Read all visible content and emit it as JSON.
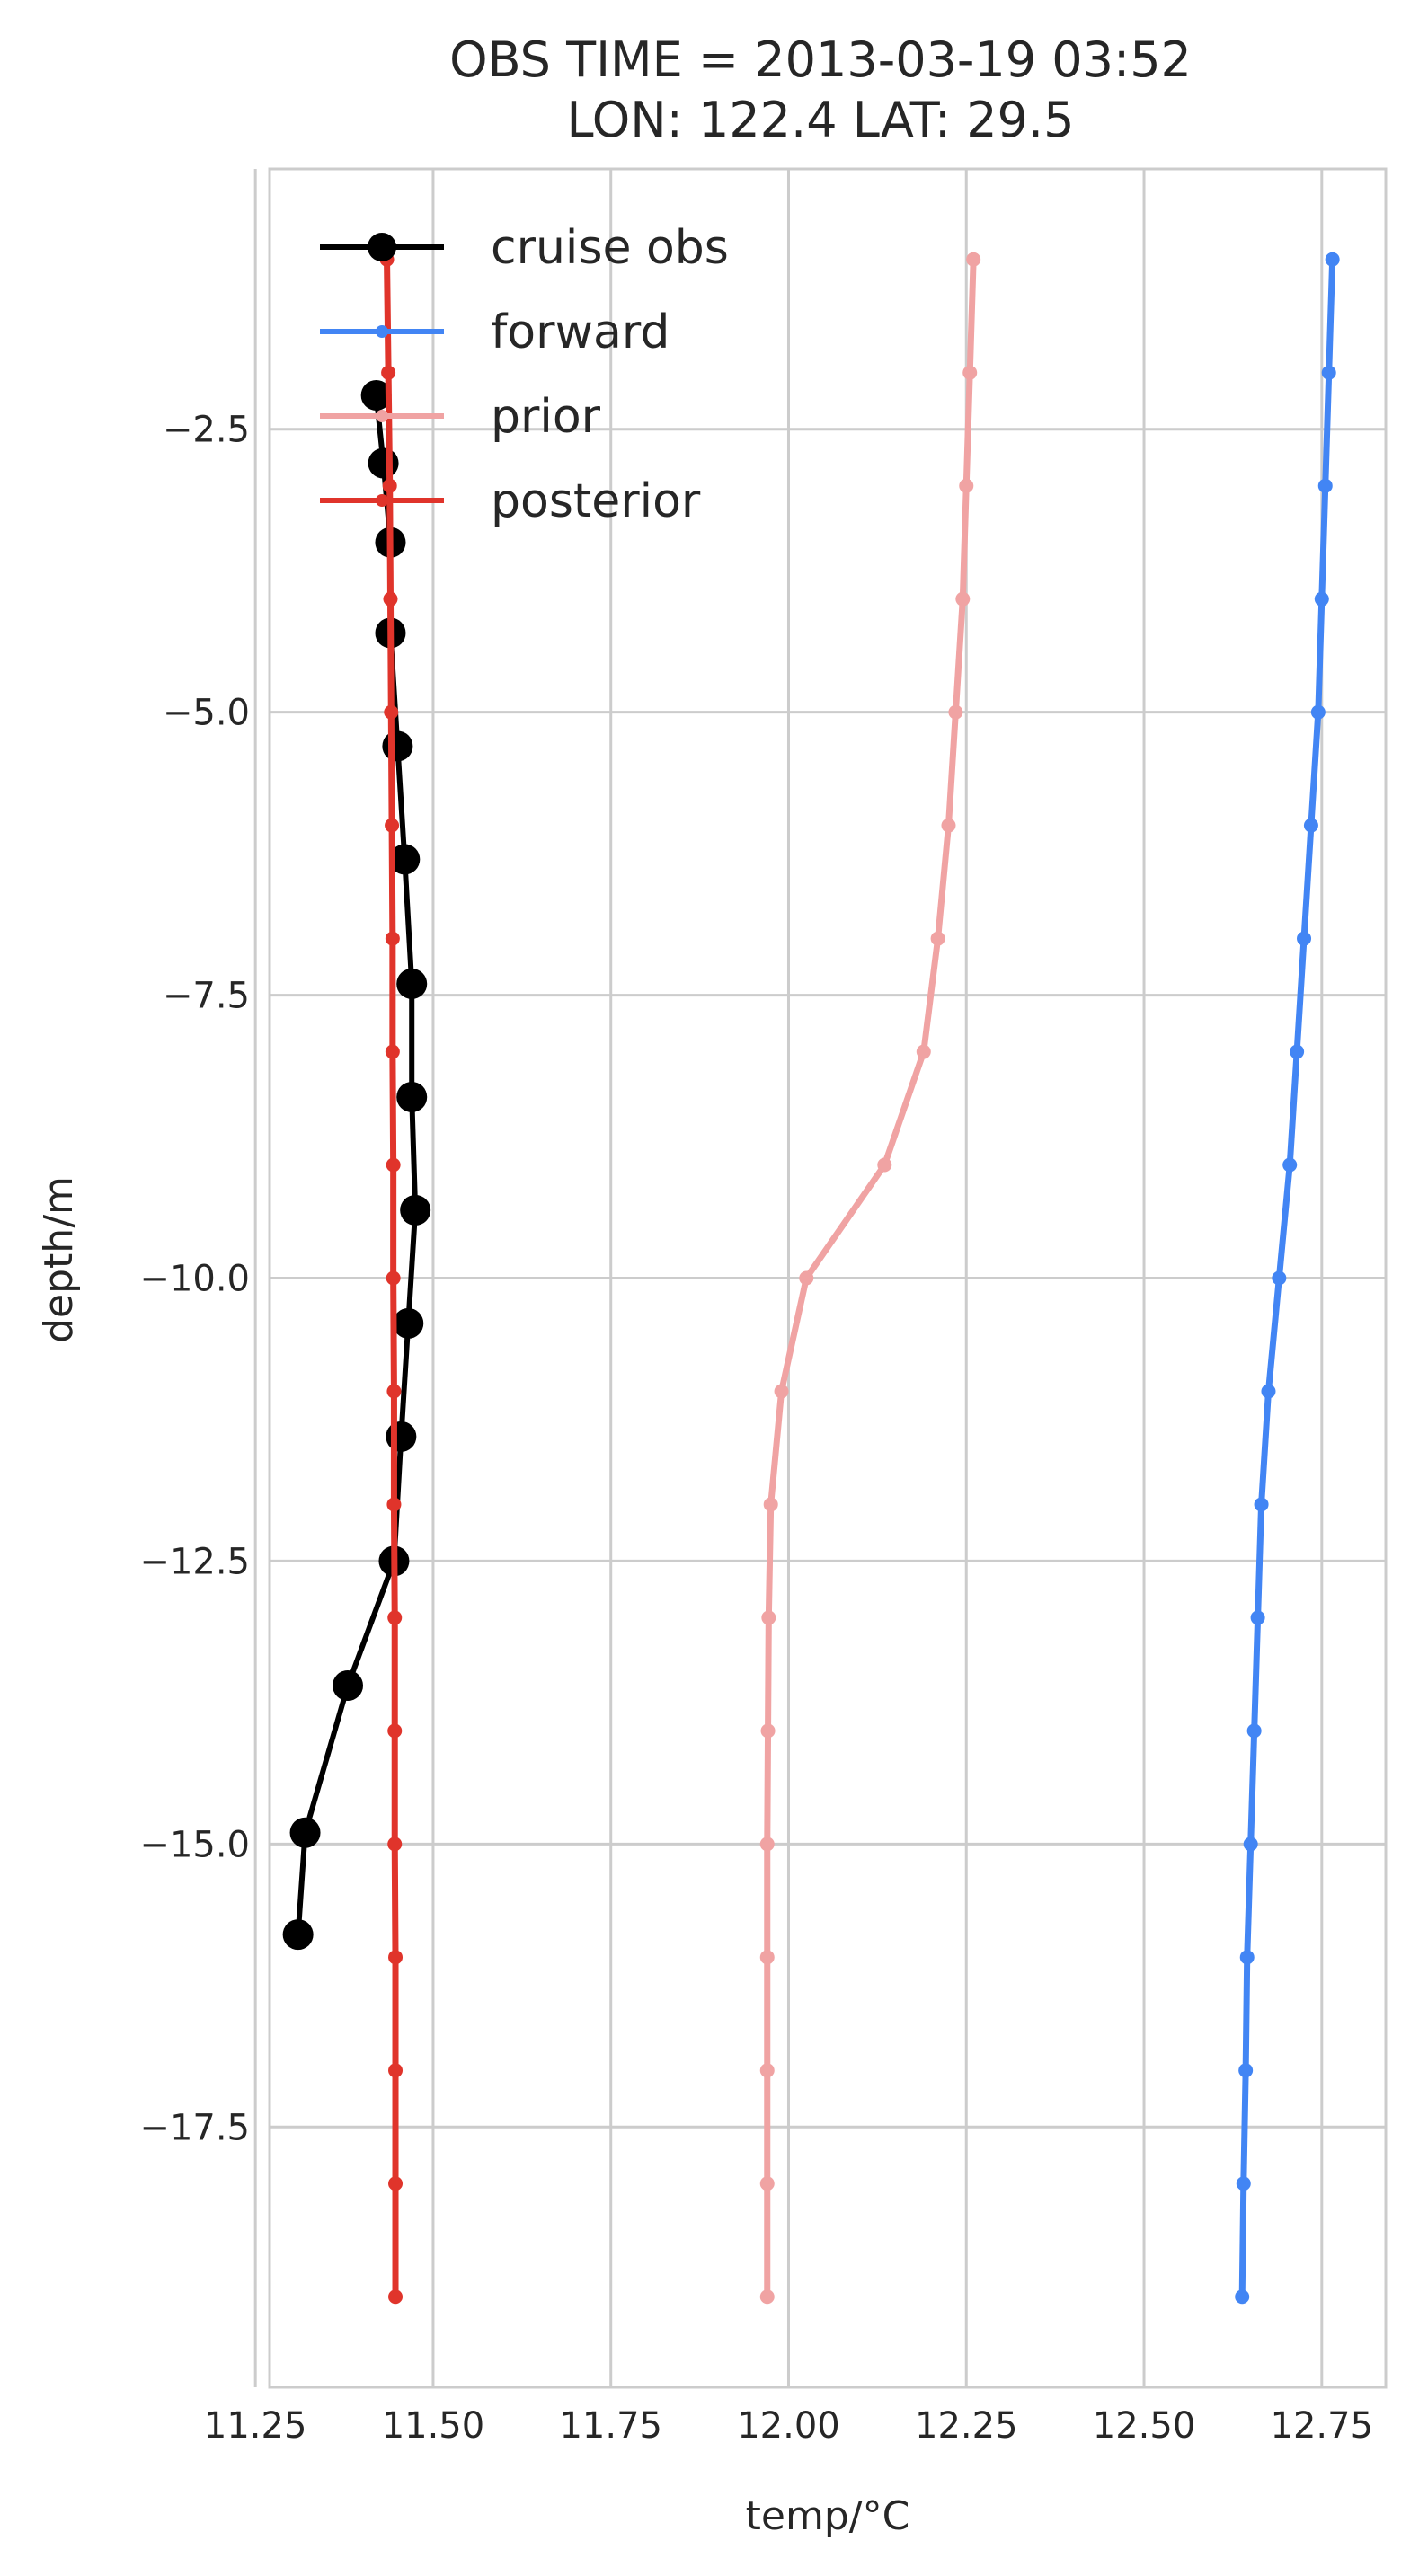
{
  "chart_data": {
    "type": "line",
    "title": "OBS TIME = 2013-03-19 03:52",
    "subtitle": "LON: 122.4 LAT: 29.5",
    "xlabel": "temp/°C",
    "ylabel": "depth/m",
    "xlim": [
      11.27,
      12.84
    ],
    "ylim": [
      -19.8,
      -0.2
    ],
    "xticks": [
      11.25,
      11.5,
      11.75,
      12.0,
      12.25,
      12.5,
      12.75
    ],
    "xtick_labels": [
      "11.25",
      "11.50",
      "11.75",
      "12.00",
      "12.25",
      "12.50",
      "12.75"
    ],
    "yticks": [
      -2.5,
      -5.0,
      -7.5,
      -10.0,
      -12.5,
      -15.0,
      -17.5
    ],
    "ytick_labels": [
      "−2.5",
      "−5.0",
      "−7.5",
      "−10.0",
      "−12.5",
      "−15.0",
      "−17.5"
    ],
    "grid": true,
    "legend_position": "top-left",
    "series": [
      {
        "name": "cruise obs",
        "color": "#000000",
        "marker": "large-circle",
        "x": [
          11.42,
          11.43,
          11.44,
          11.44,
          11.45,
          11.46,
          11.47,
          11.47,
          11.475,
          11.465,
          11.455,
          11.445,
          11.38,
          11.32,
          11.31
        ],
        "y": [
          -2.2,
          -2.8,
          -3.5,
          -4.3,
          -5.3,
          -6.3,
          -7.4,
          -8.4,
          -9.4,
          -10.4,
          -11.4,
          -12.5,
          -13.6,
          -14.9,
          -15.8
        ]
      },
      {
        "name": "forward",
        "color": "#4285f4",
        "marker": "small-dot",
        "x": [
          12.765,
          12.76,
          12.755,
          12.75,
          12.745,
          12.735,
          12.725,
          12.715,
          12.705,
          12.69,
          12.675,
          12.665,
          12.66,
          12.655,
          12.65,
          12.645,
          12.643,
          12.64,
          12.638
        ],
        "y": [
          -1,
          -2,
          -3,
          -4,
          -5,
          -6,
          -7,
          -8,
          -9,
          -10,
          -11,
          -12,
          -13,
          -14,
          -15,
          -16,
          -17,
          -18,
          -19
        ]
      },
      {
        "name": "prior",
        "color": "#f0a3a3",
        "marker": "small-dot",
        "x": [
          12.26,
          12.255,
          12.25,
          12.245,
          12.235,
          12.225,
          12.21,
          12.19,
          12.135,
          12.025,
          11.99,
          11.975,
          11.972,
          11.971,
          11.97,
          11.97,
          11.97,
          11.97,
          11.97
        ],
        "y": [
          -1,
          -2,
          -3,
          -4,
          -5,
          -6,
          -7,
          -8,
          -9,
          -10,
          -11,
          -12,
          -13,
          -14,
          -15,
          -16,
          -17,
          -18,
          -19
        ]
      },
      {
        "name": "posterior",
        "color": "#e0342b",
        "marker": "small-dot",
        "x": [
          11.435,
          11.437,
          11.439,
          11.44,
          11.441,
          11.442,
          11.443,
          11.443,
          11.444,
          11.444,
          11.445,
          11.445,
          11.446,
          11.446,
          11.446,
          11.447,
          11.447,
          11.447,
          11.447
        ],
        "y": [
          -1,
          -2,
          -3,
          -4,
          -5,
          -6,
          -7,
          -8,
          -9,
          -10,
          -11,
          -12,
          -13,
          -14,
          -15,
          -16,
          -17,
          -18,
          -19
        ]
      }
    ]
  }
}
